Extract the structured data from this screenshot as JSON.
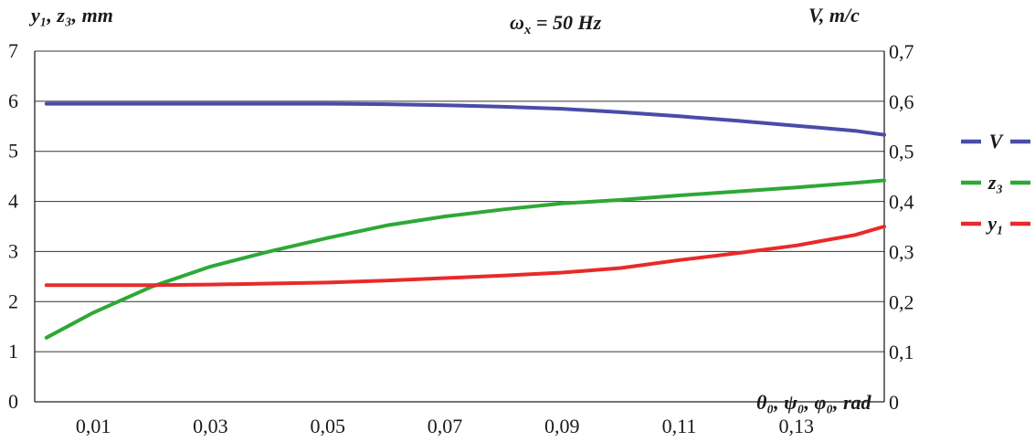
{
  "chart_data": {
    "type": "line",
    "title": "ωx = 50 Hz",
    "title_parts": {
      "symbol": "ω",
      "sub": "x",
      "rest": " = 50 Hz"
    },
    "xlabel": "θ₀, ψ₀, φ₀, rad",
    "ylabel_left": "y₁, z₃, mm",
    "ylabel_right": "V, m/c",
    "x_ticks": [
      "0,01",
      "0,03",
      "0,05",
      "0,07",
      "0,09",
      "0,11",
      "0,13"
    ],
    "x_tick_values": [
      0.01,
      0.03,
      0.05,
      0.07,
      0.09,
      0.11,
      0.13
    ],
    "y_left_ticks": [
      "0",
      "1",
      "2",
      "3",
      "4",
      "5",
      "6",
      "7"
    ],
    "y_right_ticks": [
      "0",
      "0,1",
      "0,2",
      "0,3",
      "0,4",
      "0,5",
      "0,6",
      "0,7"
    ],
    "xlim": [
      0.0,
      0.145
    ],
    "ylim_left": [
      0,
      7
    ],
    "ylim_right": [
      0,
      0.7
    ],
    "grid": "horizontal",
    "legend_position": "right",
    "x": [
      0.002,
      0.01,
      0.02,
      0.03,
      0.04,
      0.05,
      0.06,
      0.07,
      0.08,
      0.09,
      0.1,
      0.11,
      0.12,
      0.13,
      0.14,
      0.145
    ],
    "series": [
      {
        "name": "V",
        "axis": "right",
        "color": "#4a4ca8",
        "values": [
          0.595,
          0.595,
          0.595,
          0.595,
          0.595,
          0.595,
          0.594,
          0.592,
          0.589,
          0.585,
          0.578,
          0.57,
          0.561,
          0.551,
          0.541,
          0.533
        ]
      },
      {
        "name": "z₃",
        "axis": "left",
        "color": "#2ea836",
        "values": [
          1.28,
          1.78,
          2.3,
          2.7,
          3.0,
          3.27,
          3.52,
          3.7,
          3.84,
          3.96,
          4.03,
          4.12,
          4.2,
          4.28,
          4.37,
          4.42
        ]
      },
      {
        "name": "y₁",
        "axis": "left",
        "color": "#e82a2a",
        "values": [
          2.33,
          2.33,
          2.33,
          2.34,
          2.36,
          2.38,
          2.42,
          2.47,
          2.52,
          2.58,
          2.67,
          2.83,
          2.97,
          3.12,
          3.33,
          3.5
        ]
      }
    ]
  }
}
